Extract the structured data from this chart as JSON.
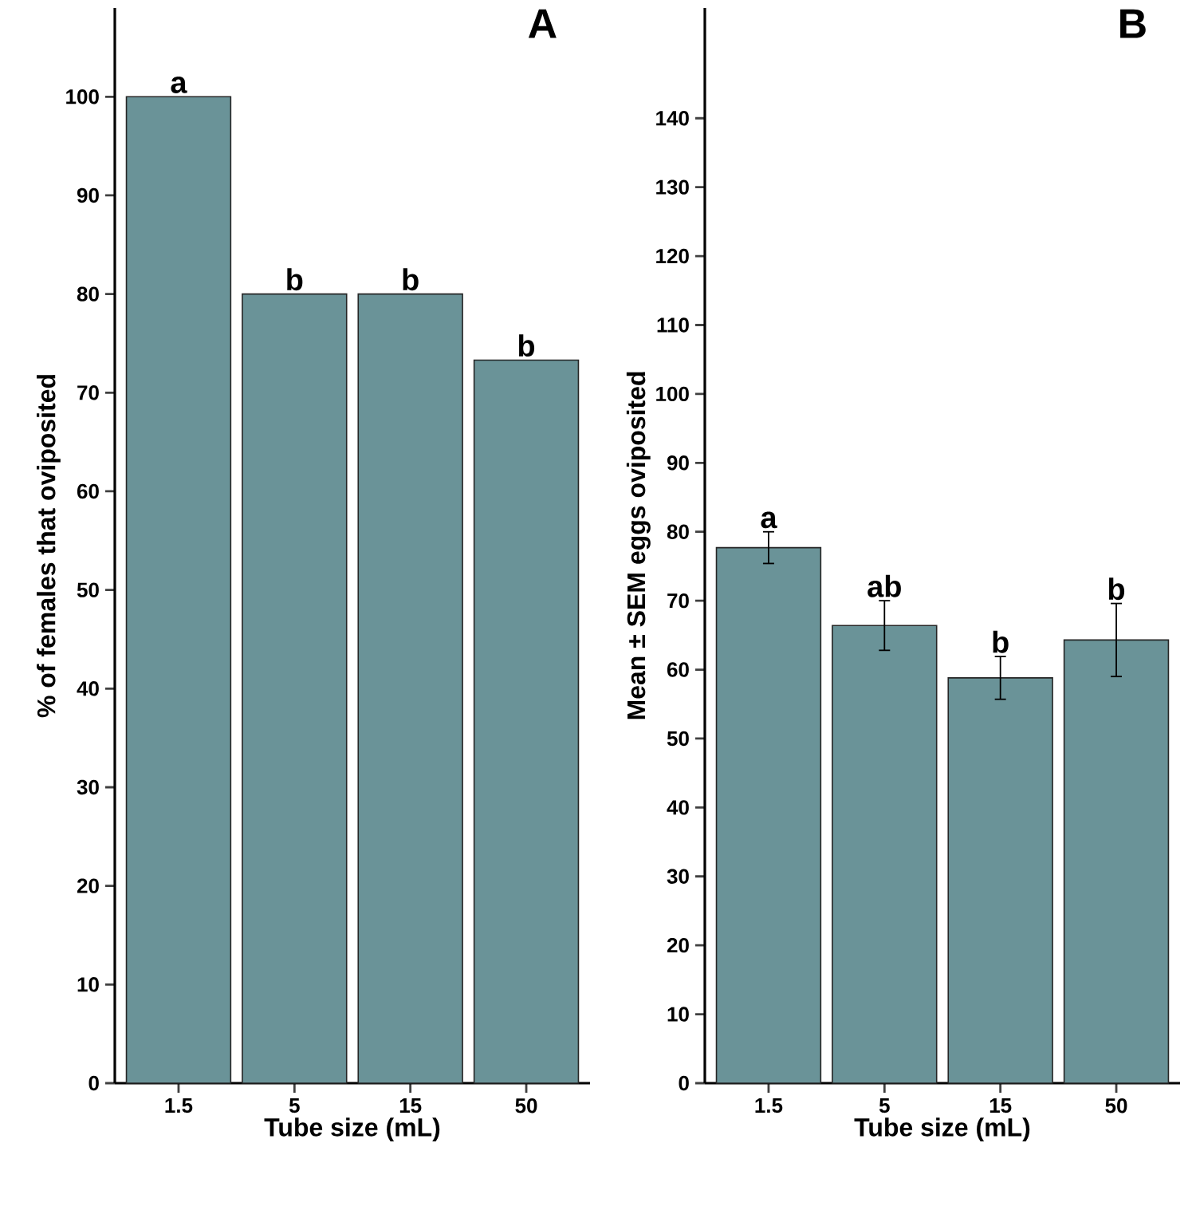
{
  "chart_data": [
    {
      "type": "bar",
      "title": "A",
      "xlabel": "Tube size (mL)",
      "ylabel": "% of females that oviposited",
      "categories": [
        "1.5",
        "5",
        "15",
        "50"
      ],
      "values": [
        100,
        80,
        80,
        73.3
      ],
      "color": "#6a9398",
      "ylim": [
        0,
        109
      ],
      "yticks": [
        0,
        10,
        20,
        30,
        40,
        50,
        60,
        70,
        80,
        90,
        100
      ],
      "grid": false,
      "annotations": [
        {
          "text": "a",
          "x": "1.5",
          "y": 100
        },
        {
          "text": "b",
          "x": "5",
          "y": 80
        },
        {
          "text": "b",
          "x": "15",
          "y": 80
        },
        {
          "text": "b",
          "x": "50",
          "y": 73.3
        }
      ]
    },
    {
      "type": "bar",
      "title": "B",
      "xlabel": "Tube size (mL)",
      "ylabel": "Mean ± SEM eggs oviposited",
      "categories": [
        "1.5",
        "5",
        "15",
        "50"
      ],
      "values": [
        77.7,
        66.4,
        58.8,
        64.3
      ],
      "errors": [
        2.3,
        3.6,
        3.1,
        5.3
      ],
      "color": "#6a9398",
      "ylim": [
        0,
        156
      ],
      "yticks": [
        0,
        10,
        20,
        30,
        40,
        50,
        60,
        70,
        80,
        90,
        100,
        110,
        120,
        130,
        140
      ],
      "grid": false,
      "annotations": [
        {
          "text": "a",
          "x": "1.5",
          "y": 80
        },
        {
          "text": "ab",
          "x": "5",
          "y": 70
        },
        {
          "text": "b",
          "x": "15",
          "y": 61.9
        },
        {
          "text": "b",
          "x": "50",
          "y": 69.6
        }
      ]
    }
  ]
}
